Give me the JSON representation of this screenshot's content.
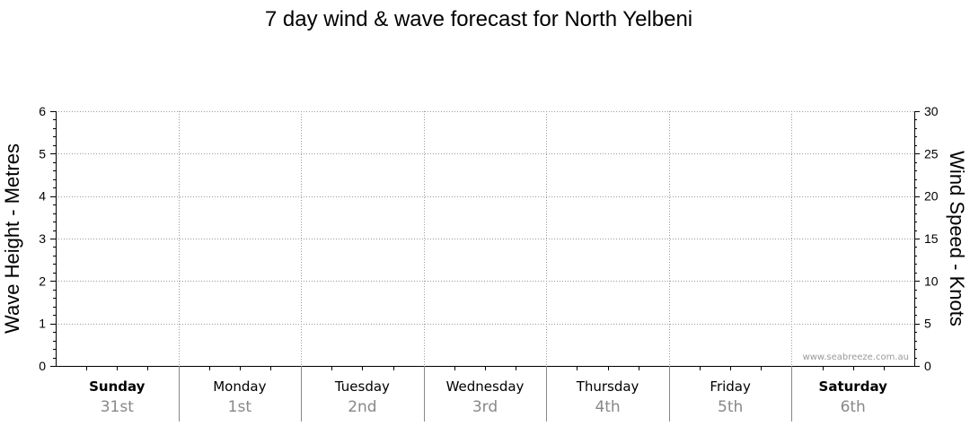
{
  "chart_data": {
    "type": "line",
    "title": "7 day wind & wave forecast for North Yelbeni",
    "y_left": {
      "label": "Wave Height - Metres",
      "range": [
        0,
        6
      ],
      "ticks": [
        0,
        1,
        2,
        3,
        4,
        5,
        6
      ]
    },
    "y_right": {
      "label": "Wind Speed - Knots",
      "range": [
        0,
        30
      ],
      "ticks": [
        0,
        5,
        10,
        15,
        20,
        25,
        30
      ]
    },
    "days": [
      {
        "day": "Sunday",
        "date": "31st",
        "bold": true
      },
      {
        "day": "Monday",
        "date": "1st",
        "bold": false
      },
      {
        "day": "Tuesday",
        "date": "2nd",
        "bold": false
      },
      {
        "day": "Wednesday",
        "date": "3rd",
        "bold": false
      },
      {
        "day": "Thursday",
        "date": "4th",
        "bold": false
      },
      {
        "day": "Friday",
        "date": "5th",
        "bold": false
      },
      {
        "day": "Saturday",
        "date": "6th",
        "bold": true
      }
    ],
    "series": [],
    "grid": true,
    "watermark": "www.seabreeze.com.au"
  }
}
